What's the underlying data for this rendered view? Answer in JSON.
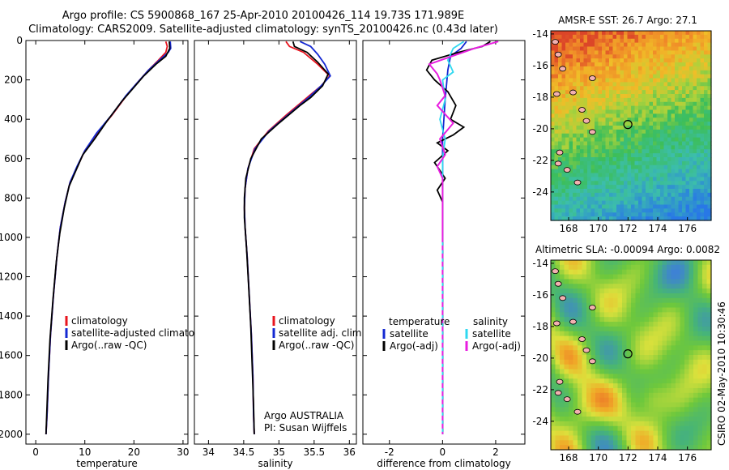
{
  "header": {
    "title_line1": "Argo profile: CS 5900868_167 25-Apr-2010 20100426_114 19.73S 171.989E",
    "title_line2": "Climatology: CARS2009. Satellite-adjusted climatology: synTS_20100426.nc (0.43d later)"
  },
  "footer": {
    "stamp": "CSIRO 02-May-2010 10:30:46"
  },
  "colors": {
    "red": "#e8141e",
    "blue": "#1428d2",
    "black": "#000000",
    "cyan": "#2fd8f0",
    "magenta": "#e81ee0"
  },
  "chart_data": [
    {
      "id": "temperature",
      "type": "line",
      "xlabel": "temperature",
      "xlim": [
        -2,
        31
      ],
      "ylim": [
        0,
        2050
      ],
      "xticks": [
        0,
        10,
        20,
        30
      ],
      "yticks": [
        0,
        200,
        400,
        600,
        800,
        1000,
        1200,
        1400,
        1600,
        1800,
        2000
      ],
      "legend": [
        "climatology",
        "satellite-adjusted climatology",
        "Argo(..raw -QC)"
      ],
      "annotation": [],
      "series": [
        {
          "name": "climatology",
          "color": "red",
          "points": [
            [
              26.5,
              5
            ],
            [
              26.8,
              30
            ],
            [
              26.5,
              60
            ],
            [
              25.0,
              100
            ],
            [
              23.0,
              150
            ],
            [
              20.5,
              220
            ],
            [
              18.5,
              280
            ],
            [
              15.5,
              380
            ],
            [
              12.5,
              470
            ],
            [
              10.0,
              560
            ],
            [
              8.5,
              640
            ],
            [
              7.0,
              720
            ],
            [
              6.0,
              820
            ],
            [
              5.0,
              950
            ],
            [
              4.3,
              1100
            ],
            [
              3.6,
              1300
            ],
            [
              3.0,
              1500
            ],
            [
              2.6,
              1700
            ],
            [
              2.3,
              1900
            ],
            [
              2.1,
              2000
            ]
          ]
        },
        {
          "name": "satellite-adjusted climatology",
          "color": "blue",
          "points": [
            [
              27.4,
              5
            ],
            [
              27.5,
              40
            ],
            [
              27.0,
              60
            ],
            [
              25.2,
              100
            ],
            [
              23.0,
              150
            ],
            [
              20.5,
              220
            ],
            [
              18.4,
              280
            ],
            [
              15.4,
              380
            ],
            [
              12.4,
              470
            ],
            [
              10.0,
              560
            ],
            [
              8.4,
              640
            ],
            [
              7.0,
              720
            ],
            [
              6.0,
              820
            ],
            [
              5.0,
              950
            ],
            [
              4.3,
              1100
            ],
            [
              3.6,
              1300
            ],
            [
              3.0,
              1500
            ],
            [
              2.6,
              1700
            ],
            [
              2.3,
              1900
            ],
            [
              2.1,
              2000
            ]
          ]
        },
        {
          "name": "Argo(..raw -QC)",
          "color": "black",
          "points": [
            [
              27.2,
              5
            ],
            [
              27.3,
              40
            ],
            [
              26.5,
              80
            ],
            [
              24.5,
              120
            ],
            [
              22.0,
              180
            ],
            [
              19.6,
              250
            ],
            [
              17.5,
              310
            ],
            [
              14.5,
              410
            ],
            [
              12.0,
              500
            ],
            [
              9.6,
              580
            ],
            [
              8.2,
              660
            ],
            [
              6.8,
              740
            ],
            [
              5.8,
              850
            ],
            [
              4.9,
              980
            ],
            [
              4.2,
              1120
            ],
            [
              3.5,
              1320
            ],
            [
              2.9,
              1520
            ],
            [
              2.5,
              1720
            ],
            [
              2.2,
              1920
            ],
            [
              2.1,
              2000
            ]
          ]
        }
      ]
    },
    {
      "id": "salinity",
      "type": "line",
      "xlabel": "salinity",
      "xlim": [
        33.8,
        36.1
      ],
      "ylim": [
        0,
        2050
      ],
      "xticks": [
        34,
        34.5,
        35,
        35.5,
        36
      ],
      "yticks": [
        0,
        200,
        400,
        600,
        800,
        1000,
        1200,
        1400,
        1600,
        1800,
        2000
      ],
      "legend": [
        "climatology",
        "satellite adj. clim.",
        "Argo(..raw -QC)"
      ],
      "annotation": [
        "Argo AUSTRALIA",
        "PI: Susan Wijffels"
      ],
      "series": [
        {
          "name": "climatology",
          "color": "red",
          "points": [
            [
              35.1,
              5
            ],
            [
              35.15,
              30
            ],
            [
              35.35,
              60
            ],
            [
              35.55,
              120
            ],
            [
              35.72,
              180
            ],
            [
              35.6,
              230
            ],
            [
              35.4,
              290
            ],
            [
              35.1,
              380
            ],
            [
              34.85,
              460
            ],
            [
              34.65,
              550
            ],
            [
              34.56,
              650
            ],
            [
              34.52,
              750
            ],
            [
              34.51,
              850
            ],
            [
              34.52,
              950
            ],
            [
              34.55,
              1100
            ],
            [
              34.58,
              1300
            ],
            [
              34.61,
              1500
            ],
            [
              34.63,
              1700
            ],
            [
              34.64,
              1900
            ],
            [
              34.65,
              2000
            ]
          ]
        },
        {
          "name": "satellite adj. clim.",
          "color": "blue",
          "points": [
            [
              35.3,
              5
            ],
            [
              35.45,
              30
            ],
            [
              35.55,
              70
            ],
            [
              35.65,
              120
            ],
            [
              35.73,
              180
            ],
            [
              35.6,
              230
            ],
            [
              35.42,
              290
            ],
            [
              35.12,
              380
            ],
            [
              34.86,
              460
            ],
            [
              34.66,
              550
            ],
            [
              34.56,
              650
            ],
            [
              34.52,
              750
            ],
            [
              34.51,
              850
            ],
            [
              34.52,
              950
            ],
            [
              34.55,
              1100
            ],
            [
              34.58,
              1300
            ],
            [
              34.61,
              1500
            ],
            [
              34.63,
              1700
            ],
            [
              34.64,
              1900
            ],
            [
              34.65,
              2000
            ]
          ]
        },
        {
          "name": "Argo(..raw -QC)",
          "color": "black",
          "points": [
            [
              35.2,
              5
            ],
            [
              35.22,
              30
            ],
            [
              35.4,
              60
            ],
            [
              35.55,
              110
            ],
            [
              35.7,
              170
            ],
            [
              35.62,
              230
            ],
            [
              35.45,
              290
            ],
            [
              35.3,
              330
            ],
            [
              35.0,
              420
            ],
            [
              34.75,
              500
            ],
            [
              34.6,
              600
            ],
            [
              34.53,
              700
            ],
            [
              34.51,
              800
            ],
            [
              34.51,
              900
            ],
            [
              34.54,
              1050
            ],
            [
              34.57,
              1250
            ],
            [
              34.6,
              1450
            ],
            [
              34.62,
              1650
            ],
            [
              34.64,
              1850
            ],
            [
              34.65,
              2000
            ]
          ]
        }
      ]
    },
    {
      "id": "difference",
      "type": "line",
      "xlabel": "difference from climatology",
      "xlim": [
        -3,
        3.1
      ],
      "ylim": [
        0,
        2050
      ],
      "xticks": [
        -2,
        0,
        2
      ],
      "yticks": [
        0,
        200,
        400,
        600,
        800,
        1000,
        1200,
        1400,
        1600,
        1800,
        2000
      ],
      "legend_headers": [
        "temperature",
        "salinity"
      ],
      "legend": [
        "satellite",
        "Argo(-adj)",
        "satellite",
        "Argo(-adj)"
      ],
      "annotation": [],
      "series": [
        {
          "name": "temperature satellite",
          "color": "blue",
          "points": [
            [
              0.9,
              5
            ],
            [
              0.7,
              40
            ],
            [
              0.3,
              80
            ],
            [
              0.2,
              150
            ],
            [
              0.1,
              300
            ],
            [
              0.0,
              500
            ],
            [
              0.0,
              800
            ],
            [
              0.0,
              1200
            ],
            [
              0.0,
              1600
            ],
            [
              0.0,
              2000
            ]
          ]
        },
        {
          "name": "temperature Argo(-adj)",
          "color": "black",
          "points": [
            [
              1.8,
              5
            ],
            [
              1.5,
              30
            ],
            [
              0.6,
              60
            ],
            [
              -0.4,
              100
            ],
            [
              -0.6,
              150
            ],
            [
              -0.3,
              200
            ],
            [
              0.2,
              260
            ],
            [
              0.5,
              330
            ],
            [
              0.3,
              400
            ],
            [
              0.8,
              440
            ],
            [
              0.4,
              480
            ],
            [
              -0.2,
              520
            ],
            [
              0.2,
              560
            ],
            [
              -0.3,
              620
            ],
            [
              0.1,
              700
            ],
            [
              -0.2,
              760
            ],
            [
              0.0,
              820
            ],
            [
              0.0,
              1000
            ],
            [
              0.0,
              1500
            ],
            [
              0.0,
              2000
            ]
          ]
        },
        {
          "name": "salinity satellite",
          "color": "cyan",
          "points": [
            [
              0.8,
              5
            ],
            [
              0.4,
              40
            ],
            [
              0.2,
              100
            ],
            [
              0.4,
              160
            ],
            [
              0.0,
              200
            ],
            [
              0.1,
              300
            ],
            [
              -0.1,
              400
            ],
            [
              0.1,
              500
            ],
            [
              0.0,
              600
            ],
            [
              0.0,
              800
            ],
            [
              0.0,
              1000
            ],
            [
              0.0,
              1500
            ],
            [
              0.0,
              2000
            ]
          ]
        },
        {
          "name": "salinity Argo(-adj)",
          "color": "magenta",
          "points": [
            [
              2.1,
              5
            ],
            [
              1.2,
              40
            ],
            [
              -0.5,
              120
            ],
            [
              -0.2,
              170
            ],
            [
              -0.1,
              200
            ],
            [
              0.1,
              280
            ],
            [
              -0.2,
              330
            ],
            [
              0.4,
              420
            ],
            [
              -0.1,
              500
            ],
            [
              0.1,
              580
            ],
            [
              -0.2,
              640
            ],
            [
              0.0,
              700
            ],
            [
              0.0,
              1000
            ],
            [
              0.0,
              1500
            ],
            [
              0.0,
              2000
            ]
          ],
          "dashed_below": 1000
        }
      ]
    },
    {
      "id": "sst-map",
      "type": "heatmap",
      "title": "AMSR-E SST: 26.7 Argo: 27.1",
      "xlim": [
        166.8,
        177.6
      ],
      "ylim": [
        -25.8,
        -13.8
      ],
      "xticks": [
        168,
        170,
        172,
        174,
        176
      ],
      "yticks": [
        -14,
        -16,
        -18,
        -20,
        -22,
        -24
      ],
      "marker": [
        171.989,
        -19.73
      ]
    },
    {
      "id": "sla-map",
      "type": "heatmap",
      "title": "Altimetric SLA: -0.00094 Argo: 0.0082",
      "xlim": [
        166.8,
        177.6
      ],
      "ylim": [
        -25.8,
        -13.8
      ],
      "xticks": [
        168,
        170,
        172,
        174,
        176
      ],
      "yticks": [
        -14,
        -16,
        -18,
        -20,
        -22,
        -24
      ],
      "marker": [
        171.989,
        -19.73
      ]
    }
  ]
}
